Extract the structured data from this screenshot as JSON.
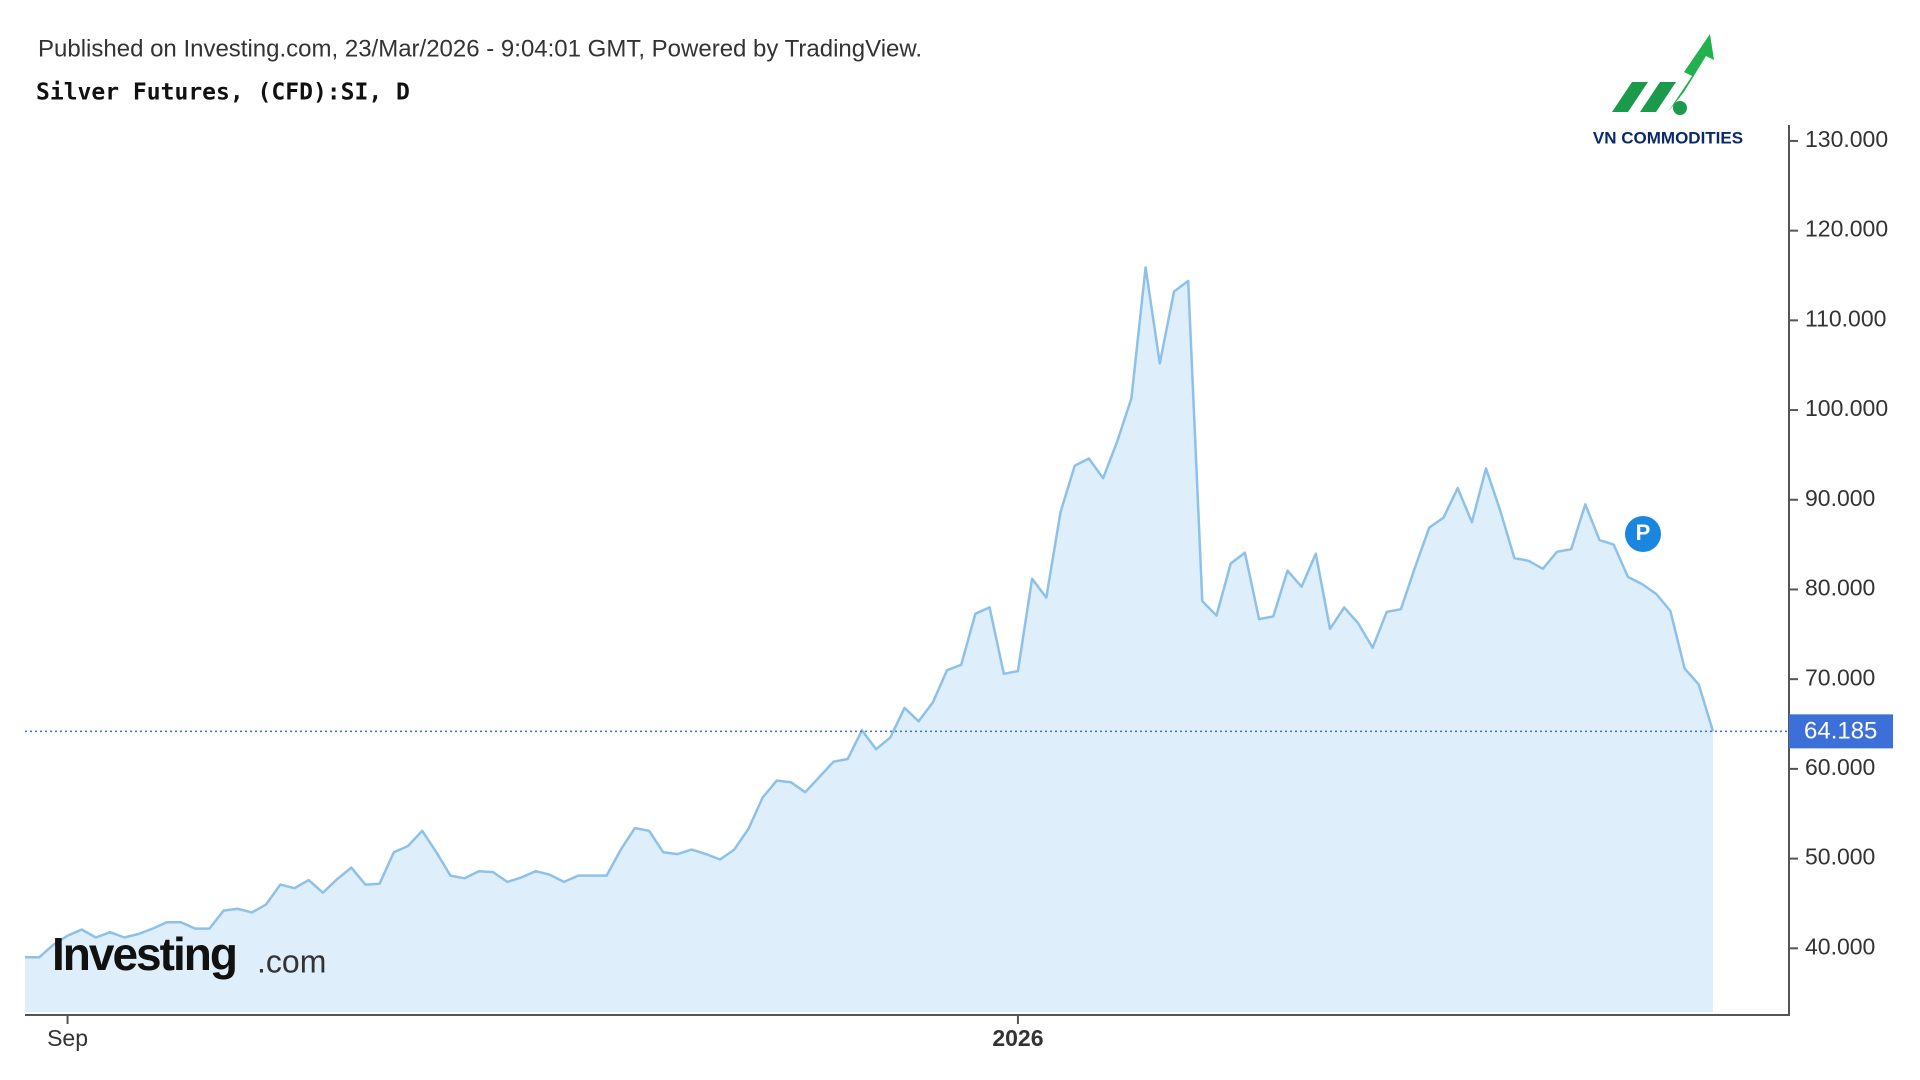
{
  "chart_data": {
    "type": "area",
    "header": "Published on Investing.com, 23/Mar/2026 - 9:04:01 GMT, Powered by TradingView.",
    "title": "Silver Futures, (CFD):SI, D",
    "logo_text": "VN COMMODITIES",
    "watermark": "Investing",
    "watermark_suffix": ".com",
    "marker_label": "P",
    "color": "#8ec1ea",
    "fill": "#deeefa",
    "price_color": "#3d6fd8",
    "categories": [
      null,
      null,
      null,
      "Sep",
      null,
      null,
      null,
      null,
      null,
      null,
      null,
      null,
      null,
      null,
      null,
      null,
      null,
      null,
      null,
      null,
      null,
      null,
      null,
      null,
      null,
      null,
      null,
      null,
      null,
      null,
      null,
      null,
      null,
      null,
      null,
      null,
      null,
      null,
      null,
      null,
      null,
      null,
      null,
      null,
      null,
      null,
      null,
      null,
      null,
      null,
      null,
      null,
      null,
      null,
      null,
      null,
      null,
      null,
      null,
      null,
      null,
      null,
      null,
      null,
      null,
      null,
      null,
      null,
      null,
      null,
      "2026",
      null,
      null,
      null,
      null,
      null,
      null,
      null,
      null,
      null,
      null,
      null,
      null,
      null,
      null,
      null,
      null,
      null,
      null,
      null,
      null,
      null,
      null,
      null,
      null,
      null,
      null,
      null,
      null,
      null,
      null,
      null,
      null,
      null,
      null,
      null,
      null,
      null,
      null,
      null,
      null,
      null,
      null,
      null,
      null,
      null,
      null,
      null,
      null,
      null
    ],
    "values": [
      39.0,
      39.0,
      40.4,
      41.4,
      42.1,
      41.2,
      41.8,
      41.2,
      41.6,
      42.2,
      42.9,
      42.9,
      42.2,
      42.2,
      44.2,
      44.4,
      44.0,
      44.9,
      47.1,
      46.7,
      47.6,
      46.2,
      47.7,
      49.0,
      47.1,
      47.2,
      50.7,
      51.4,
      53.1,
      50.7,
      48.1,
      47.8,
      48.6,
      48.5,
      47.4,
      47.9,
      48.6,
      48.2,
      47.4,
      48.1,
      48.1,
      48.1,
      51.0,
      53.4,
      53.1,
      50.7,
      50.5,
      51.0,
      50.5,
      49.9,
      51.0,
      53.3,
      56.8,
      58.7,
      58.5,
      57.4,
      59.1,
      60.8,
      61.1,
      64.3,
      62.2,
      63.5,
      66.8,
      65.3,
      67.4,
      71.0,
      71.6,
      77.3,
      78.0,
      70.6,
      70.9,
      81.2,
      79.1,
      88.6,
      93.8,
      94.6,
      92.4,
      96.5,
      101.3,
      115.9,
      105.2,
      113.2,
      114.4,
      78.7,
      77.1,
      82.9,
      84.1,
      76.7,
      77.0,
      82.1,
      80.3,
      84.0,
      75.6,
      78.0,
      76.2,
      73.5,
      77.5,
      77.8,
      82.5,
      86.9,
      88.0,
      91.3,
      87.5,
      93.5,
      88.8,
      83.5,
      83.2,
      82.3,
      84.2,
      84.5,
      89.5,
      85.5,
      85.0,
      81.4,
      80.6,
      79.5,
      77.6,
      71.2,
      69.4,
      64.185
    ],
    "ylim": [
      32.9,
      132
    ],
    "yticks": [
      {
        "value": 40,
        "label": "40.000"
      },
      {
        "value": 50,
        "label": "50.000"
      },
      {
        "value": 60,
        "label": "60.000"
      },
      {
        "value": 70,
        "label": "70.000"
      },
      {
        "value": 80,
        "label": "80.000"
      },
      {
        "value": 90,
        "label": "90.000"
      },
      {
        "value": 100,
        "label": "100.000"
      },
      {
        "value": 110,
        "label": "110.000"
      },
      {
        "value": 120,
        "label": "120.000"
      },
      {
        "value": 130,
        "label": "130.000"
      }
    ],
    "grid": false
  }
}
